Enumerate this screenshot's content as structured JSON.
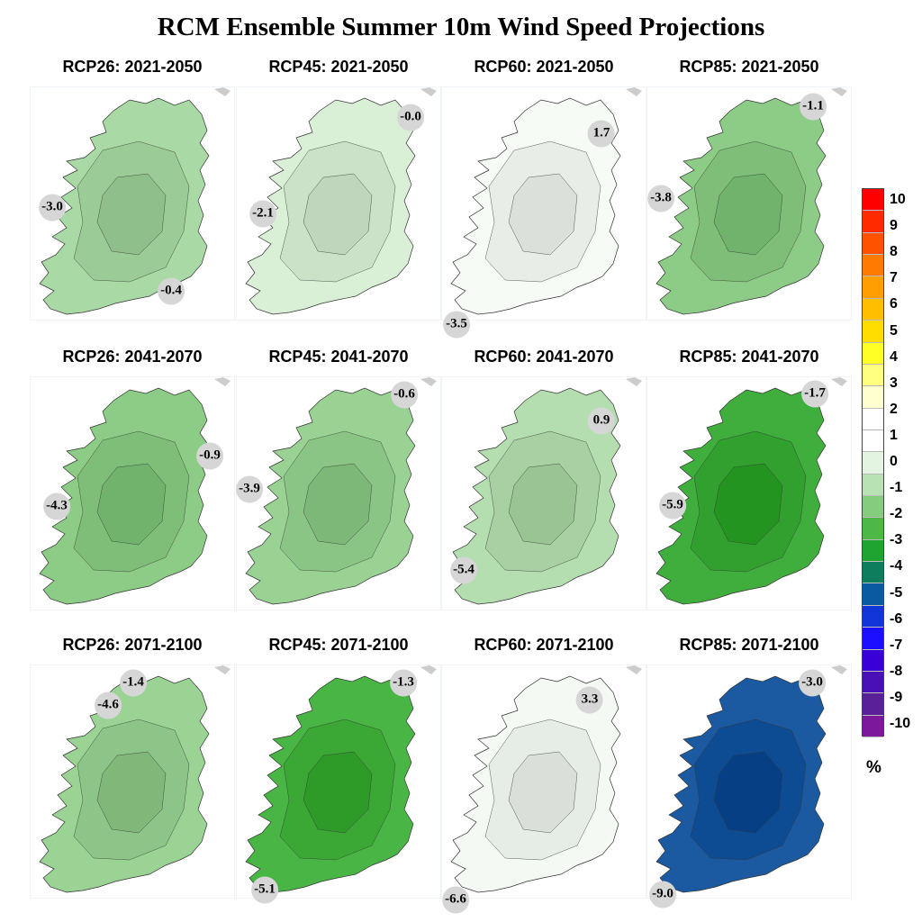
{
  "title": "RCM Ensemble Summer 10m Wind Speed Projections",
  "panels": [
    {
      "title": "RCP26: 2021-2050",
      "fill": "#a9d9a4",
      "labels": [
        {
          "text": "-3.0"
        },
        {
          "text": "-0.4"
        }
      ]
    },
    {
      "title": "RCP45: 2021-2050",
      "fill": "#d9f0d6",
      "labels": [
        {
          "text": "-0.0"
        },
        {
          "text": "-2.1"
        }
      ]
    },
    {
      "title": "RCP60: 2021-2050",
      "fill": "#f6fbf5",
      "labels": [
        {
          "text": "1.7"
        },
        {
          "text": "-3.5"
        }
      ]
    },
    {
      "title": "RCP85: 2021-2050",
      "fill": "#8ccc86",
      "labels": [
        {
          "text": "-1.1"
        },
        {
          "text": "-3.8"
        }
      ]
    },
    {
      "title": "RCP26: 2041-2070",
      "fill": "#8ccc86",
      "labels": [
        {
          "text": "-0.9"
        },
        {
          "text": "-4.3"
        }
      ]
    },
    {
      "title": "RCP45: 2041-2070",
      "fill": "#99d293",
      "labels": [
        {
          "text": "-0.6"
        },
        {
          "text": "-3.9"
        }
      ]
    },
    {
      "title": "RCP60: 2041-2070",
      "fill": "#b5deb0",
      "labels": [
        {
          "text": "0.9"
        },
        {
          "text": "-5.4"
        }
      ]
    },
    {
      "title": "RCP85: 2041-2070",
      "fill": "#3fae3c",
      "labels": [
        {
          "text": "-1.7"
        },
        {
          "text": "-5.9"
        }
      ]
    },
    {
      "title": "RCP26: 2071-2100",
      "fill": "#9ad394",
      "labels": [
        {
          "text": "-1.4"
        },
        {
          "text": "-4.6"
        }
      ]
    },
    {
      "title": "RCP45: 2071-2100",
      "fill": "#49b544",
      "labels": [
        {
          "text": "-1.3"
        },
        {
          "text": "-5.1"
        }
      ]
    },
    {
      "title": "RCP60: 2071-2100",
      "fill": "#f4faf3",
      "labels": [
        {
          "text": "3.3"
        },
        {
          "text": "-6.6"
        }
      ]
    },
    {
      "title": "RCP85: 2071-2100",
      "fill": "#1b5aa0",
      "labels": [
        {
          "text": "-3.0"
        },
        {
          "text": "-9.0"
        }
      ]
    }
  ],
  "colorbar": {
    "unit": "%",
    "ticks": [
      "10",
      "9",
      "8",
      "7",
      "6",
      "5",
      "4",
      "3",
      "2",
      "1",
      "0",
      "-1",
      "-2",
      "-3",
      "-4",
      "-5",
      "-6",
      "-7",
      "-8",
      "-9",
      "-10"
    ],
    "colors": [
      "#ff0000",
      "#ff2a00",
      "#ff5200",
      "#ff7a00",
      "#ff9e00",
      "#ffbf00",
      "#ffdd00",
      "#ffff26",
      "#ffff80",
      "#ffffd0",
      "#ffffff",
      "#ffffff",
      "#e3f4e0",
      "#b9e2b4",
      "#86cc7f",
      "#4db848",
      "#1fa331",
      "#0e7d5e",
      "#0a5aa0",
      "#1035d8",
      "#1a10ff",
      "#3a00d8",
      "#4a10b8",
      "#5a2098",
      "#7a1a9a"
    ]
  }
}
